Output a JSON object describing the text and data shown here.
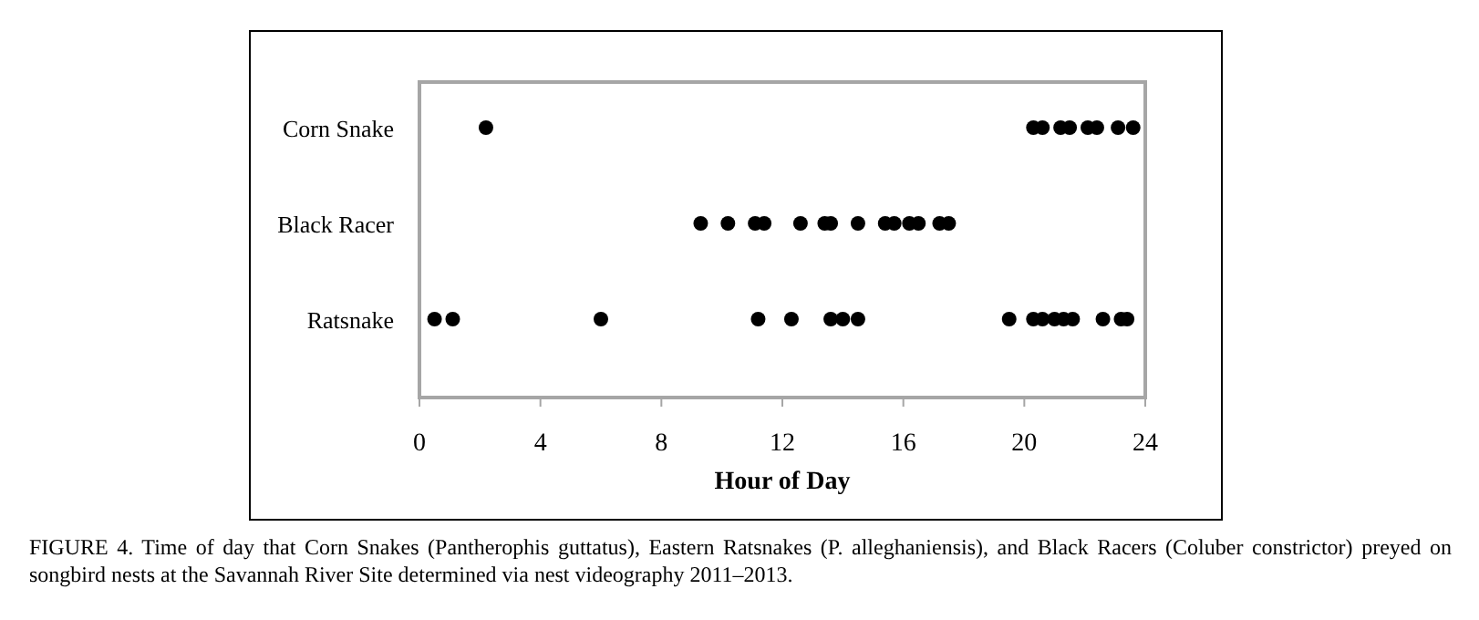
{
  "chart_data": {
    "type": "scatter",
    "orientation": "horizontal",
    "xlabel": "Hour of Day",
    "xlim": [
      0,
      24
    ],
    "xticks": [
      0,
      4,
      8,
      12,
      16,
      20,
      24
    ],
    "grid": false,
    "marker": "circle",
    "categories": [
      "Corn Snake",
      "Black Racer",
      "Ratsnake"
    ],
    "series": [
      {
        "color": "#000000",
        "x": [
          "Corn Snake",
          "Corn Snake",
          "Corn Snake",
          "Corn Snake",
          "Corn Snake",
          "Corn Snake",
          "Corn Snake",
          "Corn Snake",
          "Corn Snake"
        ],
        "values": [
          2.2,
          20.3,
          20.6,
          21.2,
          21.5,
          22.1,
          22.4,
          23.1,
          23.6
        ]
      },
      {
        "color": "#000000",
        "x": [
          "Black Racer",
          "Black Racer",
          "Black Racer",
          "Black Racer",
          "Black Racer",
          "Black Racer",
          "Black Racer",
          "Black Racer",
          "Black Racer",
          "Black Racer",
          "Black Racer",
          "Black Racer",
          "Black Racer",
          "Black Racer"
        ],
        "values": [
          9.3,
          10.2,
          11.1,
          11.4,
          12.6,
          13.4,
          13.6,
          14.5,
          15.4,
          15.7,
          16.2,
          16.5,
          17.2,
          17.5
        ]
      },
      {
        "color": "#000000",
        "x": [
          "Ratsnake",
          "Ratsnake",
          "Ratsnake",
          "Ratsnake",
          "Ratsnake",
          "Ratsnake",
          "Ratsnake",
          "Ratsnake",
          "Ratsnake",
          "Ratsnake",
          "Ratsnake",
          "Ratsnake",
          "Ratsnake",
          "Ratsnake",
          "Ratsnake",
          "Ratsnake",
          "Ratsnake"
        ],
        "values": [
          0.5,
          1.1,
          6.0,
          11.2,
          12.3,
          13.6,
          14.0,
          14.5,
          19.5,
          20.3,
          20.6,
          21.0,
          21.3,
          21.6,
          22.6,
          23.2,
          23.4
        ]
      }
    ],
    "annotations": [
      "FIGURE 4.  Time of day that Corn Snakes (Pantherophis guttatus), Eastern Ratsnakes (P. alleghaniensis), and Black Racers (Coluber constrictor) preyed on songbird nests at the Savannah River Site determined via nest videography 2011–2013."
    ]
  }
}
